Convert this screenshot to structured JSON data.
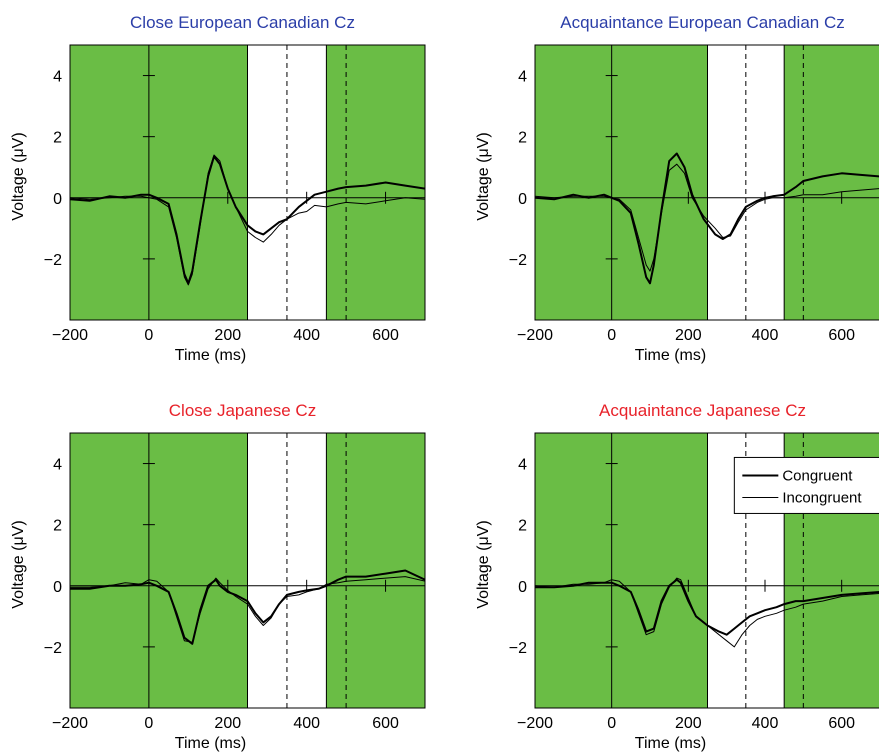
{
  "chart_data": [
    {
      "type": "line",
      "title": "Close European Canadian Cz",
      "title_color": "#2b3ea8",
      "xlabel": "Time (ms)",
      "ylabel": "Voltage (μV)",
      "xlim": [
        -200,
        700
      ],
      "ylim": [
        -4,
        5
      ],
      "xticks": [
        "−200",
        "0",
        "200",
        "400",
        "600"
      ],
      "yticks": [
        "−2",
        "0",
        "2",
        "4"
      ],
      "shaded_windows": [
        [
          -200,
          250
        ],
        [
          450,
          700
        ]
      ],
      "dashed_lines": [
        350,
        500
      ],
      "legend": false,
      "series": [
        {
          "name": "Congruent",
          "style": "thick",
          "x": [
            -200,
            -150,
            -100,
            -60,
            -20,
            0,
            20,
            50,
            70,
            90,
            100,
            110,
            130,
            150,
            165,
            180,
            200,
            220,
            250,
            270,
            290,
            310,
            330,
            350,
            380,
            400,
            420,
            450,
            480,
            500,
            550,
            600,
            650,
            700
          ],
          "values": [
            -0.05,
            -0.1,
            0.05,
            0.0,
            0.1,
            0.1,
            0.0,
            -0.2,
            -1.2,
            -2.5,
            -2.8,
            -2.4,
            -0.8,
            0.7,
            1.35,
            1.1,
            0.3,
            -0.3,
            -0.9,
            -1.1,
            -1.2,
            -1.0,
            -0.8,
            -0.7,
            -0.3,
            -0.1,
            0.1,
            0.2,
            0.3,
            0.35,
            0.4,
            0.5,
            0.4,
            0.3
          ]
        },
        {
          "name": "Incongruent",
          "style": "thin",
          "x": [
            -200,
            -150,
            -100,
            -60,
            -20,
            0,
            20,
            50,
            70,
            90,
            100,
            110,
            130,
            150,
            165,
            180,
            200,
            220,
            250,
            270,
            290,
            310,
            330,
            350,
            380,
            400,
            420,
            450,
            480,
            500,
            550,
            600,
            650,
            700
          ],
          "values": [
            0.0,
            -0.05,
            0.0,
            0.05,
            0.05,
            0.0,
            -0.05,
            -0.3,
            -1.3,
            -2.6,
            -2.85,
            -2.5,
            -0.9,
            0.8,
            1.4,
            1.2,
            0.3,
            -0.3,
            -1.1,
            -1.3,
            -1.45,
            -1.2,
            -0.9,
            -0.7,
            -0.5,
            -0.45,
            -0.25,
            -0.3,
            -0.2,
            -0.15,
            -0.2,
            -0.1,
            0.0,
            -0.05
          ]
        }
      ]
    },
    {
      "type": "line",
      "title": "Acquaintance European Canadian Cz",
      "title_color": "#2b3ea8",
      "xlabel": "Time (ms)",
      "ylabel": "Voltage (μV)",
      "xlim": [
        -200,
        700
      ],
      "ylim": [
        -4,
        5
      ],
      "xticks": [
        "−200",
        "0",
        "200",
        "400",
        "600"
      ],
      "yticks": [
        "−2",
        "0",
        "2",
        "4"
      ],
      "shaded_windows": [
        [
          -200,
          250
        ],
        [
          450,
          700
        ]
      ],
      "dashed_lines": [
        350,
        500
      ],
      "legend": false,
      "series": [
        {
          "name": "Congruent",
          "style": "thick",
          "x": [
            -200,
            -150,
            -100,
            -60,
            -20,
            0,
            20,
            50,
            70,
            90,
            100,
            110,
            130,
            150,
            170,
            190,
            210,
            240,
            270,
            290,
            310,
            330,
            350,
            380,
            400,
            420,
            450,
            480,
            500,
            550,
            600,
            650,
            700
          ],
          "values": [
            0.0,
            -0.05,
            0.1,
            0.0,
            0.1,
            0.0,
            -0.1,
            -0.5,
            -1.5,
            -2.6,
            -2.8,
            -2.2,
            -0.4,
            1.2,
            1.45,
            1.0,
            0.1,
            -0.7,
            -1.2,
            -1.35,
            -1.2,
            -0.7,
            -0.3,
            -0.1,
            0.0,
            0.05,
            0.1,
            0.35,
            0.55,
            0.7,
            0.8,
            0.75,
            0.7
          ]
        },
        {
          "name": "Incongruent",
          "style": "thin",
          "x": [
            -200,
            -150,
            -100,
            -60,
            -20,
            0,
            20,
            50,
            70,
            90,
            100,
            110,
            130,
            150,
            170,
            190,
            210,
            240,
            270,
            290,
            310,
            330,
            350,
            380,
            400,
            420,
            450,
            480,
            500,
            550,
            600,
            650,
            700
          ],
          "values": [
            0.05,
            0.0,
            0.05,
            0.05,
            0.05,
            0.0,
            -0.05,
            -0.4,
            -1.3,
            -2.2,
            -2.4,
            -2.0,
            -0.5,
            0.9,
            1.1,
            0.8,
            0.0,
            -0.6,
            -1.0,
            -1.3,
            -1.25,
            -0.8,
            -0.4,
            -0.15,
            -0.05,
            0.0,
            0.0,
            0.05,
            0.1,
            0.1,
            0.2,
            0.25,
            0.3
          ]
        }
      ]
    },
    {
      "type": "line",
      "title": "Close Japanese Cz",
      "title_color": "#e8222a",
      "xlabel": "Time (ms)",
      "ylabel": "Voltage (μV)",
      "xlim": [
        -200,
        700
      ],
      "ylim": [
        -4,
        5
      ],
      "xticks": [
        "−200",
        "0",
        "200",
        "400",
        "600"
      ],
      "yticks": [
        "−2",
        "0",
        "2",
        "4"
      ],
      "shaded_windows": [
        [
          -200,
          250
        ],
        [
          450,
          700
        ]
      ],
      "dashed_lines": [
        350,
        500
      ],
      "legend": false,
      "series": [
        {
          "name": "Congruent",
          "style": "thick",
          "x": [
            -200,
            -150,
            -100,
            -60,
            -20,
            0,
            20,
            50,
            70,
            90,
            110,
            130,
            150,
            170,
            180,
            200,
            220,
            250,
            270,
            290,
            310,
            330,
            350,
            380,
            400,
            430,
            450,
            480,
            500,
            550,
            600,
            650,
            700
          ],
          "values": [
            -0.1,
            -0.1,
            0.0,
            0.0,
            0.05,
            0.1,
            0.0,
            -0.2,
            -0.9,
            -1.7,
            -1.9,
            -0.8,
            0.0,
            0.2,
            0.0,
            -0.2,
            -0.3,
            -0.5,
            -0.9,
            -1.2,
            -1.0,
            -0.6,
            -0.3,
            -0.2,
            -0.15,
            -0.1,
            0.0,
            0.2,
            0.3,
            0.3,
            0.4,
            0.5,
            0.2
          ]
        },
        {
          "name": "Incongruent",
          "style": "thin",
          "x": [
            -200,
            -150,
            -100,
            -60,
            -20,
            0,
            20,
            50,
            70,
            90,
            110,
            130,
            150,
            170,
            180,
            200,
            220,
            250,
            270,
            290,
            310,
            330,
            350,
            380,
            400,
            430,
            450,
            480,
            500,
            550,
            600,
            650,
            700
          ],
          "values": [
            -0.05,
            -0.05,
            0.0,
            0.1,
            0.05,
            0.2,
            0.15,
            -0.2,
            -1.0,
            -1.8,
            -1.85,
            -0.9,
            -0.1,
            0.25,
            0.1,
            -0.15,
            -0.35,
            -0.6,
            -1.0,
            -1.3,
            -1.05,
            -0.6,
            -0.35,
            -0.3,
            -0.2,
            -0.1,
            0.05,
            0.1,
            0.15,
            0.2,
            0.25,
            0.3,
            0.15
          ]
        }
      ]
    },
    {
      "type": "line",
      "title": "Acquaintance Japanese Cz",
      "title_color": "#e8222a",
      "xlabel": "Time (ms)",
      "ylabel": "Voltage (μV)",
      "xlim": [
        -200,
        700
      ],
      "ylim": [
        -4,
        5
      ],
      "xticks": [
        "−200",
        "0",
        "200",
        "400",
        "600"
      ],
      "yticks": [
        "−2",
        "0",
        "2",
        "4"
      ],
      "shaded_windows": [
        [
          -200,
          250
        ],
        [
          450,
          700
        ]
      ],
      "dashed_lines": [
        350,
        500
      ],
      "legend": true,
      "legend_position": "top-right",
      "series": [
        {
          "name": "Congruent",
          "style": "thick",
          "x": [
            -200,
            -150,
            -100,
            -60,
            -20,
            0,
            20,
            50,
            70,
            90,
            110,
            130,
            150,
            170,
            180,
            200,
            220,
            250,
            280,
            300,
            320,
            340,
            360,
            380,
            400,
            430,
            450,
            480,
            500,
            550,
            600,
            650,
            700
          ],
          "values": [
            -0.05,
            -0.05,
            0.0,
            0.1,
            0.1,
            0.1,
            0.0,
            -0.2,
            -0.8,
            -1.5,
            -1.4,
            -0.5,
            0.0,
            0.2,
            0.1,
            -0.5,
            -1.0,
            -1.3,
            -1.5,
            -1.6,
            -1.4,
            -1.2,
            -1.0,
            -0.9,
            -0.8,
            -0.7,
            -0.6,
            -0.5,
            -0.5,
            -0.4,
            -0.3,
            -0.25,
            -0.2
          ]
        },
        {
          "name": "Incongruent",
          "style": "thin",
          "x": [
            -200,
            -150,
            -100,
            -60,
            -20,
            0,
            20,
            50,
            70,
            90,
            110,
            130,
            150,
            170,
            180,
            200,
            220,
            250,
            280,
            300,
            320,
            340,
            360,
            380,
            400,
            430,
            450,
            480,
            500,
            550,
            600,
            650,
            700
          ],
          "values": [
            0.0,
            -0.05,
            0.05,
            0.05,
            0.1,
            0.2,
            0.15,
            -0.2,
            -0.9,
            -1.6,
            -1.5,
            -0.6,
            -0.05,
            0.25,
            0.2,
            -0.4,
            -1.0,
            -1.3,
            -1.6,
            -1.8,
            -2.0,
            -1.6,
            -1.3,
            -1.1,
            -1.0,
            -0.9,
            -0.8,
            -0.7,
            -0.6,
            -0.5,
            -0.35,
            -0.3,
            -0.25
          ]
        }
      ]
    }
  ],
  "colors": {
    "shade": "#6abd45",
    "line": "#000000"
  }
}
